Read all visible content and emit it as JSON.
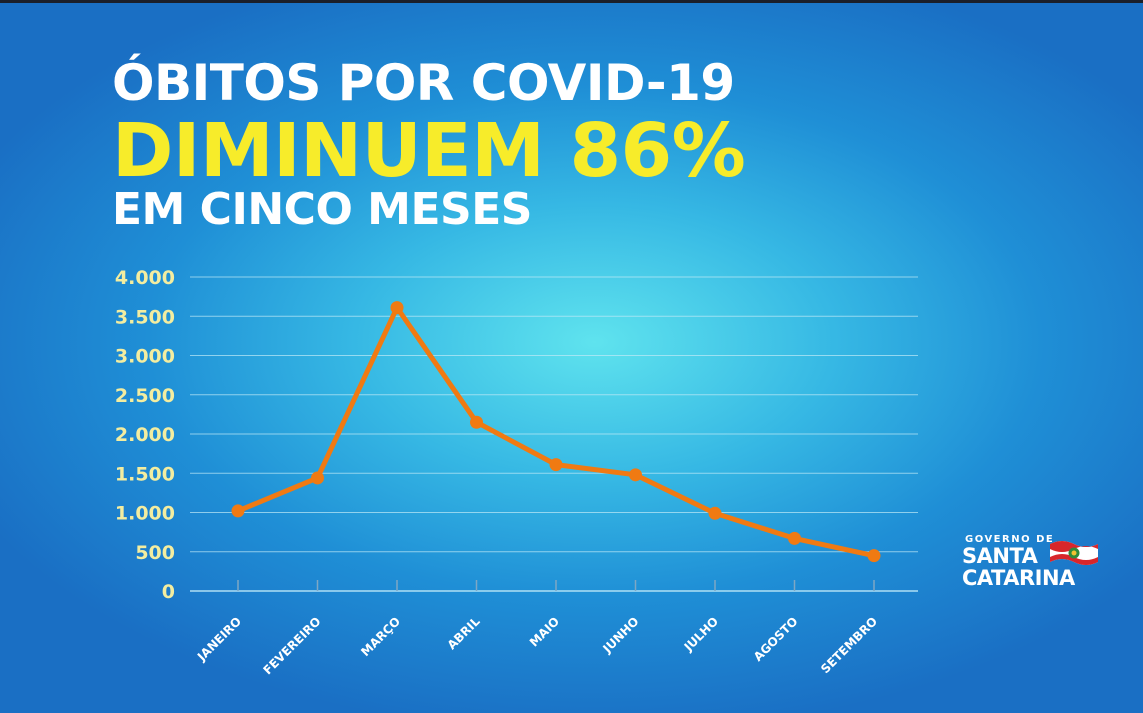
{
  "headline": {
    "line1": "ÓBITOS POR COVID-19",
    "line2": "DIMINUEM 86%",
    "line3": "EM CINCO MESES"
  },
  "logo": {
    "small": "GOVERNO DE",
    "line1": "SANTA",
    "line2": "CATARINA"
  },
  "colors": {
    "line": "#f07a12",
    "headline_highlight": "#f7ec2a",
    "grid": "#bfe9f7"
  },
  "chart_data": {
    "type": "line",
    "title": "",
    "xlabel": "",
    "ylabel": "",
    "categories": [
      "JANEIRO",
      "FEVEREIRO",
      "MARÇO",
      "ABRIL",
      "MAIO",
      "JUNHO",
      "JULHO",
      "AGOSTO",
      "SETEMBRO"
    ],
    "series": [
      {
        "values": [
          1020,
          1440,
          3610,
          2150,
          1610,
          1480,
          990,
          670,
          450
        ]
      }
    ],
    "ylim": [
      0,
      4000
    ],
    "yticks": [
      0,
      500,
      1000,
      1500,
      2000,
      2500,
      3000,
      3500,
      4000
    ],
    "ytick_labels": [
      "0",
      "500",
      "1.000",
      "1.500",
      "2.000",
      "2.500",
      "3.000",
      "3.500",
      "4.000"
    ],
    "grid": true,
    "legend": "none"
  }
}
